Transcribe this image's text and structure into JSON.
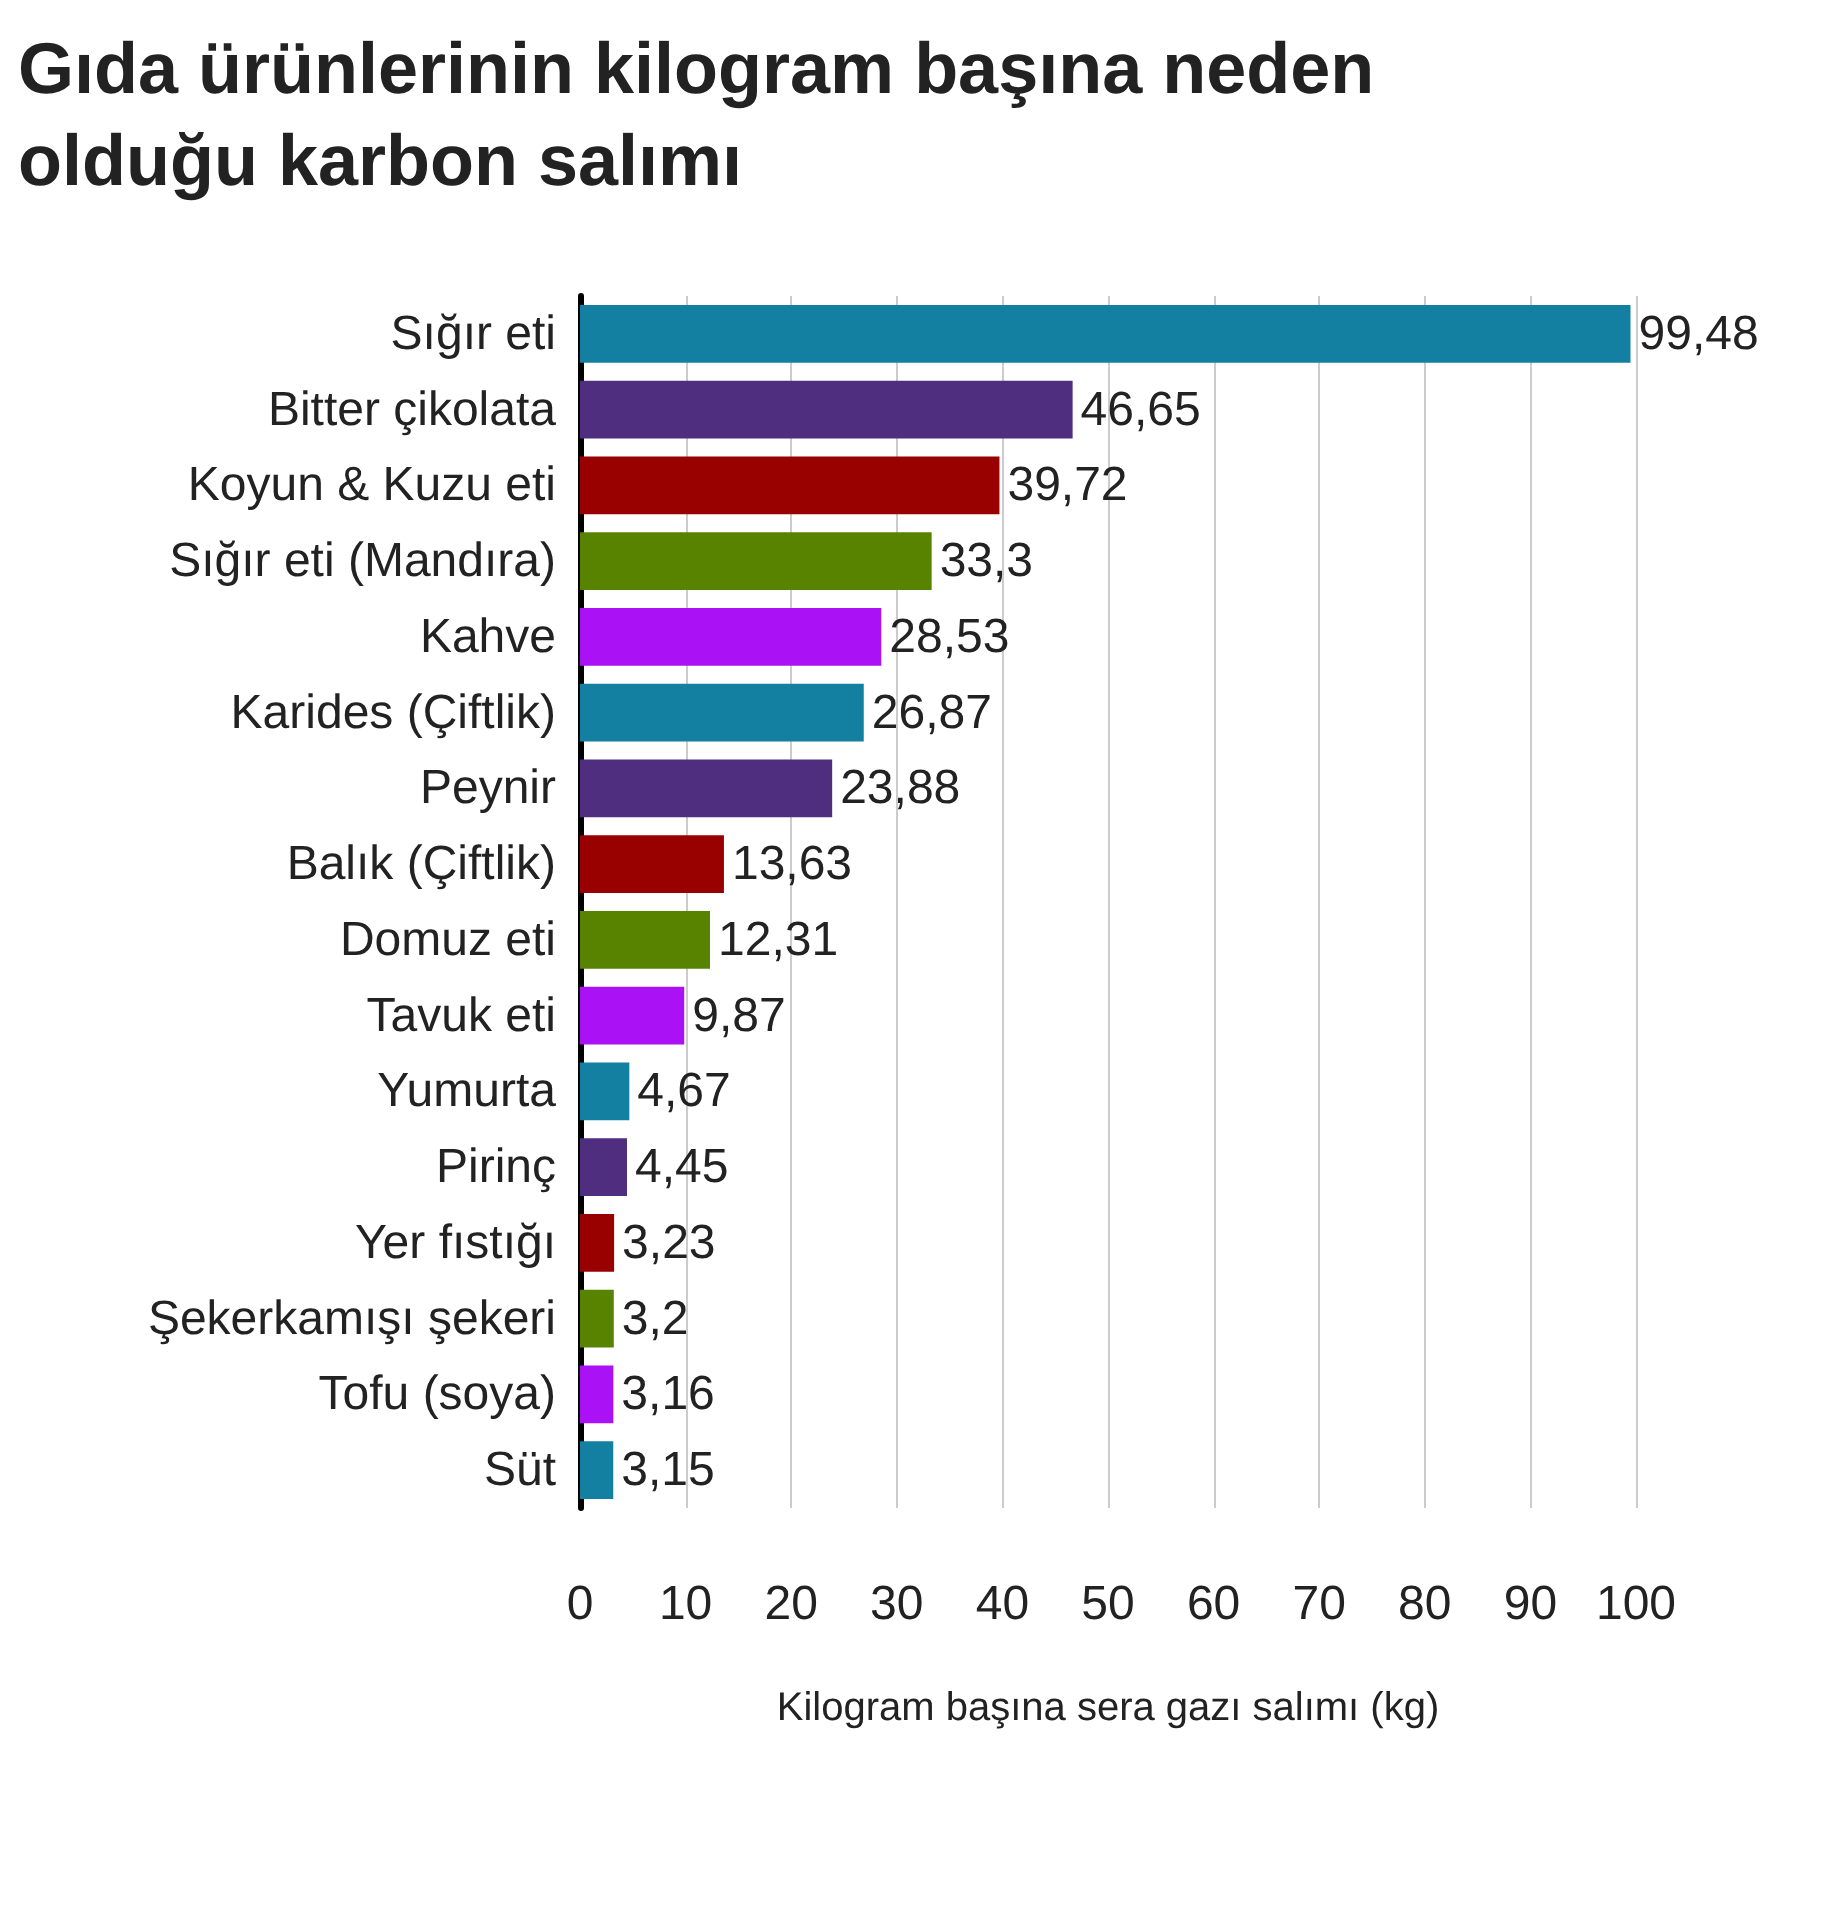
{
  "chart_data": {
    "type": "bar",
    "orientation": "horizontal",
    "title": "Gıda ürünlerinin kilogram başına neden olduğu karbon salımı",
    "xlabel": "Kilogram başına sera gazı salımı (kg)",
    "categories": [
      "Sığır eti",
      "Bitter çikolata",
      "Koyun & Kuzu eti",
      "Sığır eti (Mandıra)",
      "Kahve",
      "Karides (Çiftlik)",
      "Peynir",
      "Balık (Çiftlik)",
      "Domuz eti",
      "Tavuk eti",
      "Yumurta",
      "Pirinç",
      "Yer fıstığı",
      "Şekerkamışı şekeri",
      "Tofu (soya)",
      "Süt"
    ],
    "values": [
      99.48,
      46.65,
      39.72,
      33.3,
      28.53,
      26.87,
      23.88,
      13.63,
      12.31,
      9.87,
      4.67,
      4.45,
      3.23,
      3.2,
      3.16,
      3.15
    ],
    "value_labels": [
      "99,48",
      "46,65",
      "39,72",
      "33,3",
      "28,53",
      "26,87",
      "23,88",
      "13,63",
      "12,31",
      "9,87",
      "4,67",
      "4,45",
      "3,23",
      "3,2",
      "3,16",
      "3,15"
    ],
    "colors": [
      "#1380a1",
      "#4f2d7f",
      "#990000",
      "#588300",
      "#aa11f4",
      "#1380a1",
      "#4f2d7f",
      "#990000",
      "#588300",
      "#aa11f4",
      "#1380a1",
      "#4f2d7f",
      "#990000",
      "#588300",
      "#aa11f4",
      "#1380a1"
    ],
    "xlim": [
      0,
      100
    ],
    "xticks": [
      0,
      10,
      20,
      30,
      40,
      50,
      60,
      70,
      80,
      90,
      100
    ],
    "grid": "x"
  }
}
